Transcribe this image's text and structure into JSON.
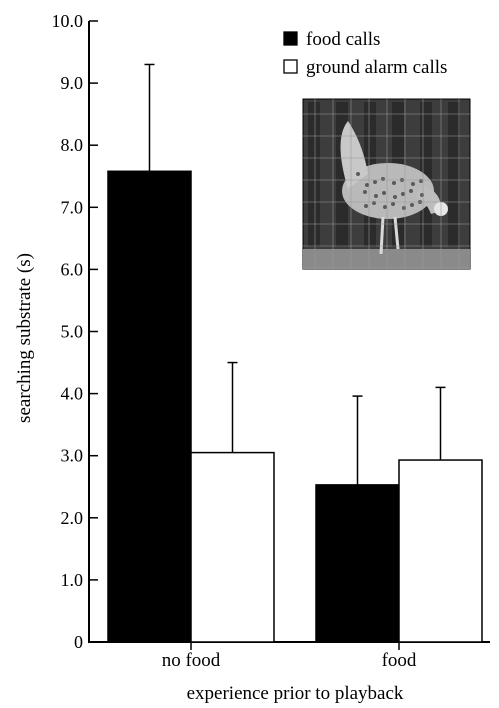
{
  "chart_data": {
    "type": "bar",
    "xlabel": "experience prior to playback",
    "ylabel": "searching substrate (s)",
    "ylim": [
      0,
      10
    ],
    "yticks": [
      "0",
      "1.0",
      "2.0",
      "3.0",
      "4.0",
      "5.0",
      "6.0",
      "7.0",
      "8.0",
      "9.0",
      "10.0"
    ],
    "categories": [
      "no food",
      "food"
    ],
    "series": [
      {
        "name": "food calls",
        "values": [
          7.58,
          2.53
        ],
        "errors": [
          1.72,
          1.43
        ],
        "color": "#000000"
      },
      {
        "name": "ground alarm calls",
        "values": [
          3.05,
          2.93
        ],
        "errors": [
          1.45,
          1.17
        ],
        "color": "#ffffff"
      }
    ],
    "grid": false,
    "legend_position": "top-right",
    "inset_image": "chicken-photo"
  }
}
